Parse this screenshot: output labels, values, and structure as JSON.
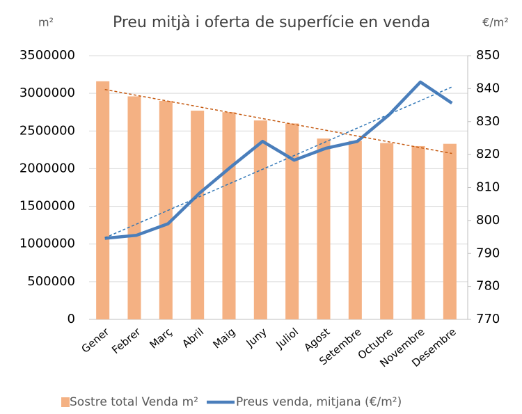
{
  "chart_data": {
    "type": "bar_line",
    "title": "Preu mitjà i oferta de superfície en venda",
    "y_label": "m²",
    "y2_label": "€/m²",
    "categories": [
      "Gener",
      "Febrer",
      "Març",
      "Abril",
      "Maig",
      "Juny",
      "Juliol",
      "Agost",
      "Setembre",
      "Octubre",
      "Novembre",
      "Desembre"
    ],
    "series": [
      {
        "name": "Sostre total Venda m²",
        "type": "bar",
        "color": "#f4b183",
        "trendline_color": "#c55a11",
        "values": [
          3160000,
          2960000,
          2900000,
          2770000,
          2750000,
          2640000,
          2600000,
          2400000,
          2370000,
          2340000,
          2300000,
          2330000
        ]
      },
      {
        "name": "Preus venda, mitjana (€/m²)",
        "type": "line",
        "axis": "y2",
        "color": "#4a7ebb",
        "trendline_color": "#2e75b6",
        "values": [
          794.6,
          795.5,
          799,
          808.3,
          816.3,
          824,
          818.3,
          821.9,
          824,
          832,
          842,
          835.6
        ]
      }
    ],
    "ylim": [
      0,
      3500000
    ],
    "yticks": [
      0,
      500000,
      1000000,
      1500000,
      2000000,
      2500000,
      3000000,
      3500000
    ],
    "y2lim": [
      770,
      850
    ],
    "y2ticks": [
      770,
      780,
      790,
      800,
      810,
      820,
      830,
      840,
      850
    ],
    "grid": true,
    "trendlines": true,
    "legend": "bottom"
  }
}
